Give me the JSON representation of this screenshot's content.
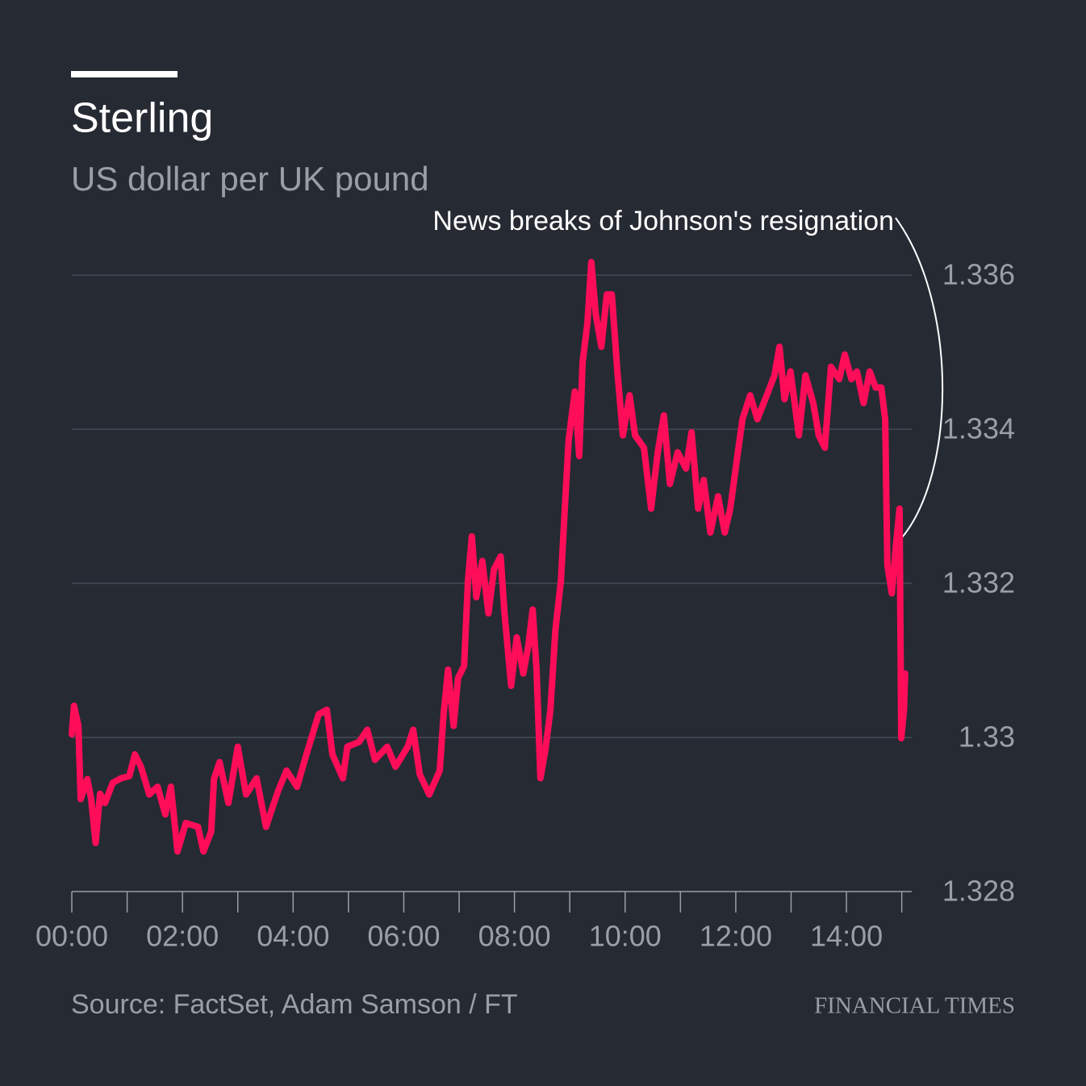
{
  "chart_data": {
    "type": "line",
    "title": "Sterling",
    "subtitle": "US dollar per UK pound",
    "annotation": "News breaks of Johnson's resignation",
    "source": "Source: FactSet, Adam Samson / FT",
    "brand": "FINANCIAL TIMES",
    "x": [
      0,
      0.04,
      0.12,
      0.16,
      0.28,
      0.35,
      0.43,
      0.51,
      0.6,
      0.74,
      0.89,
      1.04,
      1.14,
      1.25,
      1.4,
      1.55,
      1.69,
      1.79,
      1.91,
      2.06,
      2.28,
      2.38,
      2.52,
      2.57,
      2.67,
      2.83,
      3.0,
      3.15,
      3.34,
      3.51,
      3.73,
      3.88,
      4.07,
      4.24,
      4.46,
      4.61,
      4.71,
      4.9,
      4.98,
      5.19,
      5.34,
      5.48,
      5.7,
      5.85,
      6.07,
      6.17,
      6.29,
      6.46,
      6.65,
      6.72,
      6.8,
      6.9,
      6.98,
      7.09,
      7.16,
      7.23,
      7.31,
      7.42,
      7.53,
      7.63,
      7.75,
      7.82,
      7.94,
      8.04,
      8.16,
      8.25,
      8.33,
      8.4,
      8.47,
      8.56,
      8.65,
      8.74,
      8.84,
      8.91,
      8.98,
      9.09,
      9.17,
      9.23,
      9.32,
      9.39,
      9.47,
      9.57,
      9.67,
      9.76,
      9.86,
      9.96,
      10.08,
      10.18,
      10.34,
      10.47,
      10.59,
      10.7,
      10.81,
      10.95,
      11.1,
      11.2,
      11.32,
      11.42,
      11.54,
      11.68,
      11.8,
      11.9,
      12.0,
      12.12,
      12.26,
      12.39,
      12.56,
      12.7,
      12.79,
      12.88,
      12.99,
      13.14,
      13.26,
      13.4,
      13.5,
      13.61,
      13.72,
      13.87,
      13.97,
      14.09,
      14.19,
      14.31,
      14.42,
      14.53,
      14.63,
      14.7,
      14.74,
      14.82,
      14.89,
      14.96,
      14.99,
      15.04,
      15.06
    ],
    "series": [
      {
        "color": "#ff0d59",
        "values": [
          1.33004,
          1.33041,
          1.33015,
          1.3292,
          1.32946,
          1.3292,
          1.32863,
          1.32927,
          1.32915,
          1.32941,
          1.32947,
          1.3295,
          1.32978,
          1.32962,
          1.32926,
          1.32936,
          1.329,
          1.32936,
          1.32852,
          1.32889,
          1.32884,
          1.32852,
          1.32878,
          1.32946,
          1.32968,
          1.32915,
          1.32988,
          1.32926,
          1.32947,
          1.32884,
          1.32931,
          1.32957,
          1.32936,
          1.32978,
          1.3303,
          1.33036,
          1.32978,
          1.32947,
          1.32988,
          1.32994,
          1.3301,
          1.32971,
          1.32988,
          1.32962,
          1.32988,
          1.3301,
          1.32952,
          1.32926,
          1.32957,
          1.3303,
          1.33088,
          1.33015,
          1.33077,
          1.33093,
          1.33203,
          1.33261,
          1.33182,
          1.33229,
          1.33161,
          1.33218,
          1.33235,
          1.33161,
          1.33067,
          1.3313,
          1.33083,
          1.33119,
          1.33166,
          1.33088,
          1.32947,
          1.32984,
          1.33036,
          1.3314,
          1.33203,
          1.33297,
          1.33386,
          1.33449,
          1.33365,
          1.33486,
          1.33538,
          1.33617,
          1.33549,
          1.33507,
          1.33575,
          1.33575,
          1.33475,
          1.33392,
          1.33444,
          1.33392,
          1.33376,
          1.33297,
          1.3337,
          1.33418,
          1.33329,
          1.3337,
          1.33349,
          1.33396,
          1.33297,
          1.33334,
          1.33266,
          1.33313,
          1.33266,
          1.33297,
          1.3335,
          1.33413,
          1.33444,
          1.33413,
          1.33444,
          1.3347,
          1.33507,
          1.33439,
          1.33475,
          1.33392,
          1.3347,
          1.33434,
          1.33392,
          1.33376,
          1.33481,
          1.33465,
          1.33497,
          1.33465,
          1.33475,
          1.33434,
          1.33475,
          1.33454,
          1.33454,
          1.33413,
          1.33224,
          1.33187,
          1.33245,
          1.33297,
          1.32999,
          1.33036,
          1.33083
        ]
      }
    ],
    "xlim": [
      0,
      15.18
    ],
    "xticks": [
      {
        "value": 0,
        "label": "00:00"
      },
      {
        "value": 2,
        "label": "02:00"
      },
      {
        "value": 4,
        "label": "04:00"
      },
      {
        "value": 6,
        "label": "06:00"
      },
      {
        "value": 8,
        "label": "08:00"
      },
      {
        "value": 10,
        "label": "10:00"
      },
      {
        "value": 12,
        "label": "12:00"
      },
      {
        "value": 14,
        "label": "14:00"
      }
    ],
    "xticks_minor": [
      1,
      3,
      5,
      7,
      9,
      11,
      13,
      15
    ],
    "ylim": [
      1.328,
      1.336
    ],
    "yticks": [
      1.328,
      1.33,
      1.332,
      1.334,
      1.336
    ],
    "grid": true
  }
}
